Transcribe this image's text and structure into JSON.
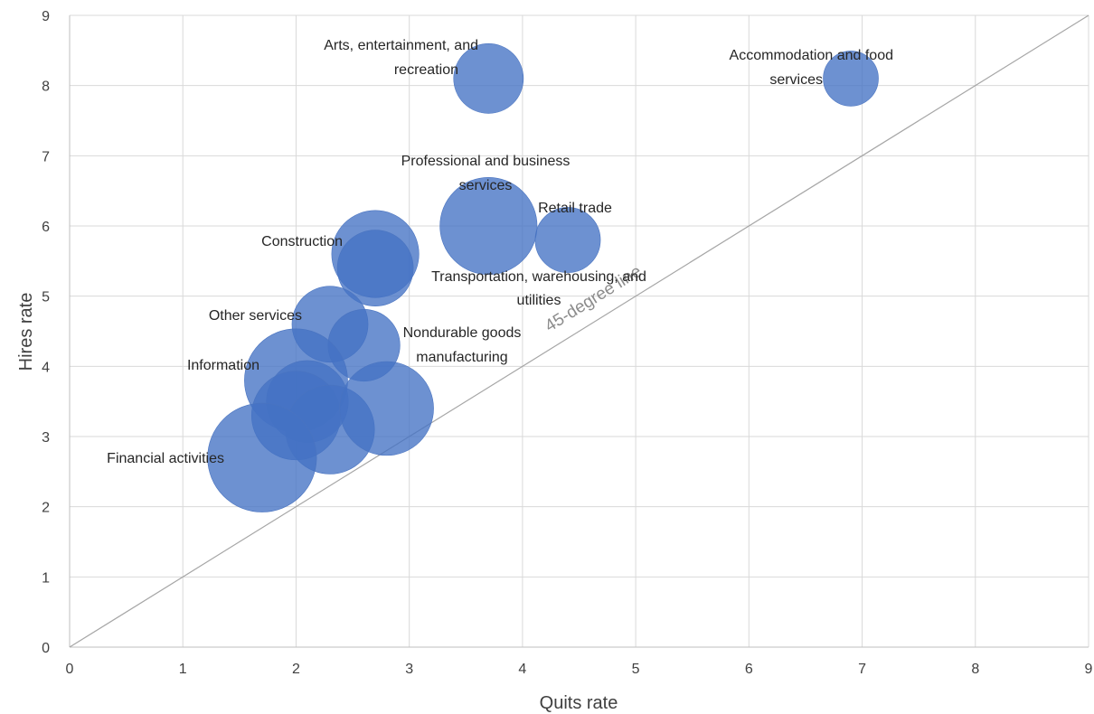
{
  "chart_data": {
    "type": "bubble",
    "xlabel": "Quits rate",
    "ylabel": "Hires rate",
    "xlim": [
      0,
      9
    ],
    "ylim": [
      0,
      9
    ],
    "xticks": [
      "0",
      "1",
      "2",
      "3",
      "4",
      "5",
      "6",
      "7",
      "8",
      "9"
    ],
    "yticks": [
      "0",
      "1",
      "2",
      "3",
      "4",
      "5",
      "6",
      "7",
      "8",
      "9"
    ],
    "grid": true,
    "reference_line": {
      "label": "45-degree line",
      "from": [
        0,
        0
      ],
      "to": [
        9,
        9
      ]
    },
    "bubble_color": "#4472c4",
    "points": [
      {
        "label": "Accommodation and food services",
        "x": 6.9,
        "y": 8.1,
        "size": 1.0
      },
      {
        "label": "Arts, entertainment, and recreation",
        "x": 3.7,
        "y": 8.1,
        "size": 1.6
      },
      {
        "label": "Professional and business services",
        "x": 3.7,
        "y": 6.0,
        "size": 3.1
      },
      {
        "label": "Retail trade",
        "x": 4.4,
        "y": 5.8,
        "size": 1.4
      },
      {
        "label": "Construction",
        "x": 2.7,
        "y": 5.6,
        "size": 2.5
      },
      {
        "label": "Transportation, warehousing, and utilities",
        "x": 2.7,
        "y": 5.4,
        "size": 1.9
      },
      {
        "label": "Other services",
        "x": 2.3,
        "y": 4.6,
        "size": 1.9
      },
      {
        "label": "Nondurable goods manufacturing",
        "x": 2.6,
        "y": 4.3,
        "size": 1.7
      },
      {
        "label": "Information",
        "x": 2.0,
        "y": 3.8,
        "size": 3.5
      },
      {
        "label": "",
        "x": 2.1,
        "y": 3.5,
        "size": 2.2
      },
      {
        "label": "",
        "x": 2.0,
        "y": 3.3,
        "size": 2.6
      },
      {
        "label": "",
        "x": 2.3,
        "y": 3.1,
        "size": 2.6
      },
      {
        "label": "",
        "x": 2.8,
        "y": 3.4,
        "size": 2.9
      },
      {
        "label": "Financial activities",
        "x": 1.7,
        "y": 2.7,
        "size": 3.9
      }
    ]
  }
}
